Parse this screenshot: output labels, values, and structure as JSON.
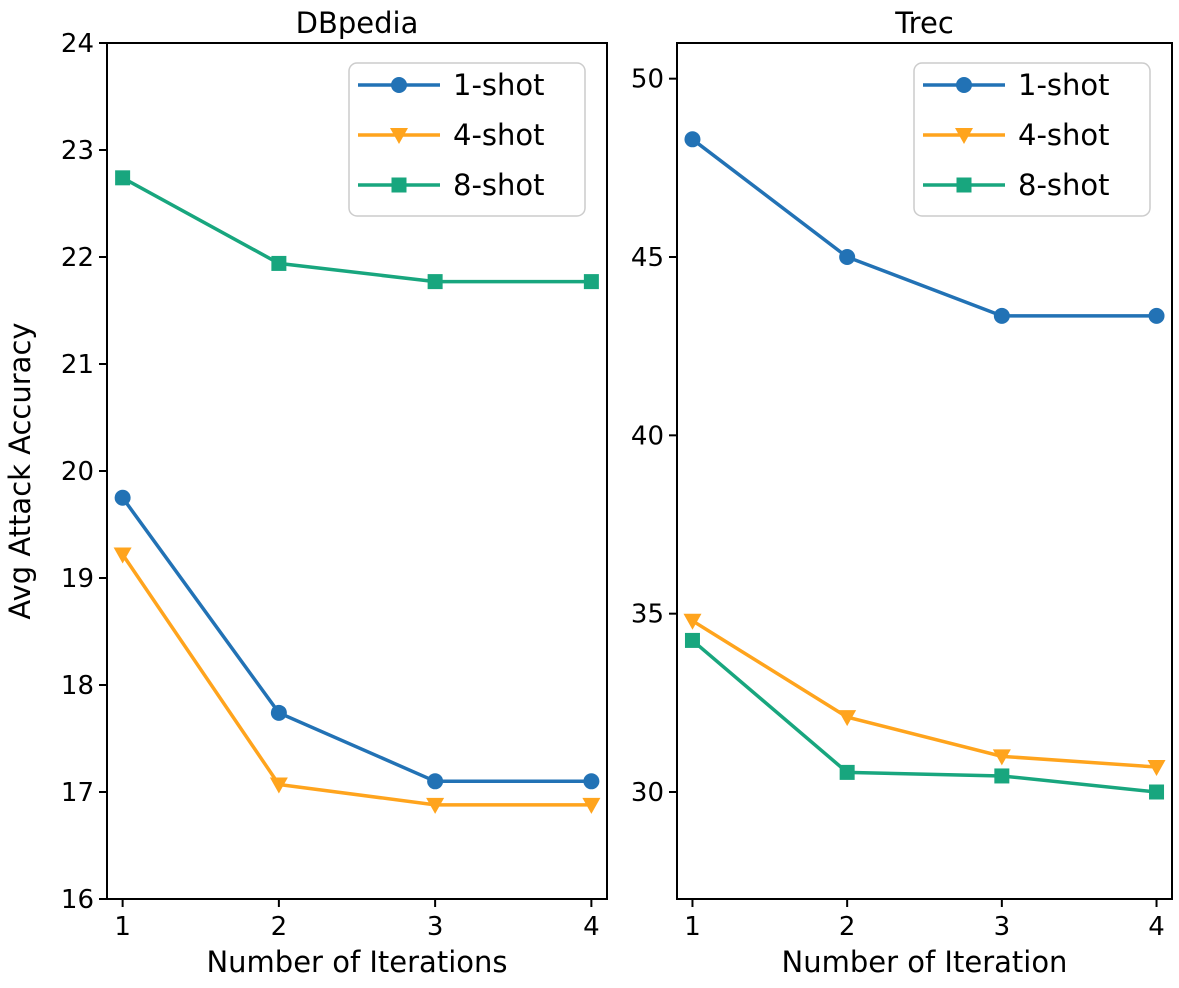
{
  "figure": {
    "background": "#ffffff",
    "axis_color": "#000000",
    "text_color": "#000000",
    "legend_border_color": "#cccccc",
    "legend_background": "#ffffff",
    "series_colors": {
      "blue": "#2272B5",
      "orange": "#FFA41D",
      "green": "#18A67E"
    }
  },
  "chart_data": [
    {
      "type": "line",
      "title": "DBpedia",
      "xlabel": "Number of Iterations",
      "ylabel": "Avg Attack Accuracy",
      "x": [
        1,
        2,
        3,
        4
      ],
      "xticks": [
        1,
        2,
        3,
        4
      ],
      "yticks": [
        16,
        17,
        18,
        19,
        20,
        21,
        22,
        23,
        24
      ],
      "xlim": [
        0.9,
        4.1
      ],
      "ylim": [
        16,
        24
      ],
      "grid": false,
      "legend_position": "upper right",
      "legend_labels": [
        "1-shot",
        "4-shot",
        "8-shot"
      ],
      "series": [
        {
          "name": "1-shot",
          "marker": "circle",
          "color": "#2272B5",
          "values": [
            19.75,
            17.74,
            17.1,
            17.1
          ]
        },
        {
          "name": "4-shot",
          "marker": "triangle-down",
          "color": "#FFA41D",
          "values": [
            19.22,
            17.07,
            16.88,
            16.88
          ]
        },
        {
          "name": "8-shot",
          "marker": "square",
          "color": "#18A67E",
          "values": [
            22.74,
            21.94,
            21.77,
            21.77
          ]
        }
      ]
    },
    {
      "type": "line",
      "title": "Trec",
      "xlabel": "Number of Iteration",
      "ylabel": "",
      "x": [
        1,
        2,
        3,
        4
      ],
      "xticks": [
        1,
        2,
        3,
        4
      ],
      "yticks": [
        30,
        35,
        40,
        45,
        50
      ],
      "xlim": [
        0.9,
        4.1
      ],
      "ylim": [
        27.0,
        51.0
      ],
      "grid": false,
      "legend_position": "upper right",
      "legend_labels": [
        "1-shot",
        "4-shot",
        "8-shot"
      ],
      "series": [
        {
          "name": "1-shot",
          "marker": "circle",
          "color": "#2272B5",
          "values": [
            48.3,
            45.0,
            43.35,
            43.35
          ]
        },
        {
          "name": "4-shot",
          "marker": "triangle-down",
          "color": "#FFA41D",
          "values": [
            34.8,
            32.1,
            31.0,
            30.7
          ]
        },
        {
          "name": "8-shot",
          "marker": "square",
          "color": "#18A67E",
          "values": [
            34.25,
            30.55,
            30.45,
            30.0
          ]
        }
      ]
    }
  ]
}
